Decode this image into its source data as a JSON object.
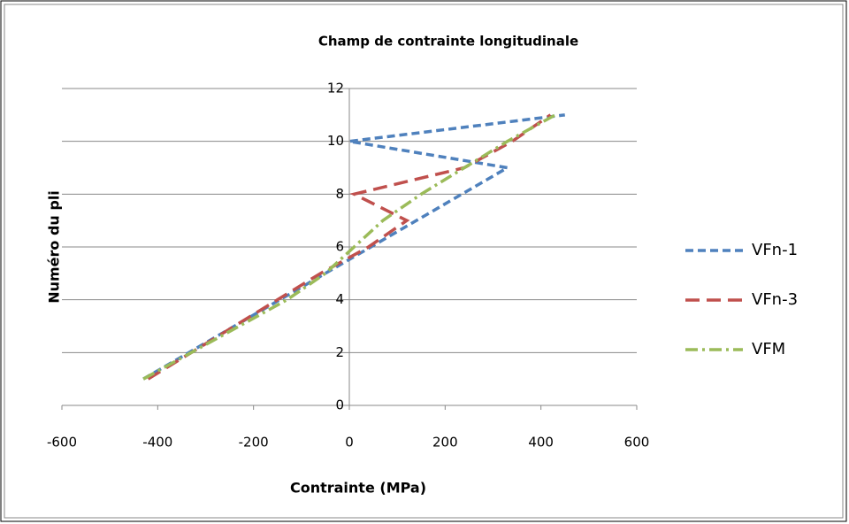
{
  "chart_data": {
    "type": "line",
    "title": "Champ de contrainte longitudinale",
    "xlabel": "Contrainte (MPa)",
    "ylabel": "Numéro du pli",
    "xlim": [
      -600,
      600
    ],
    "xticks": [
      -600,
      -400,
      -200,
      0,
      200,
      400,
      600
    ],
    "ylim": [
      0,
      12
    ],
    "yticks": [
      0,
      2,
      4,
      6,
      8,
      10,
      12
    ],
    "grid": true,
    "legend": "right",
    "series": [
      {
        "name": "VFn-1",
        "color": "#4f81bd",
        "dash": "9 5",
        "x": [
          -430,
          -335,
          -240,
          -145,
          -50,
          45,
          140,
          235,
          330,
          0,
          450
        ],
        "values": [
          1,
          2,
          3,
          4,
          5,
          6,
          7,
          8,
          9,
          10,
          11
        ]
      },
      {
        "name": "VFn-3",
        "color": "#c0504d",
        "dash": "16 8",
        "x": [
          -420,
          -330,
          -240,
          -150,
          -60,
          40,
          120,
          10,
          240,
          340,
          420
        ],
        "values": [
          1,
          2,
          3,
          4,
          5,
          6,
          7,
          8,
          9,
          10,
          11
        ]
      },
      {
        "name": "VFM",
        "color": "#9bbb59",
        "dash": "14 5 3 5",
        "x": [
          -430,
          -330,
          -230,
          -130,
          -50,
          10,
          70,
          150,
          240,
          330,
          430
        ],
        "values": [
          1,
          2,
          3,
          4,
          5,
          6,
          7,
          8,
          9,
          10,
          11
        ]
      }
    ]
  }
}
